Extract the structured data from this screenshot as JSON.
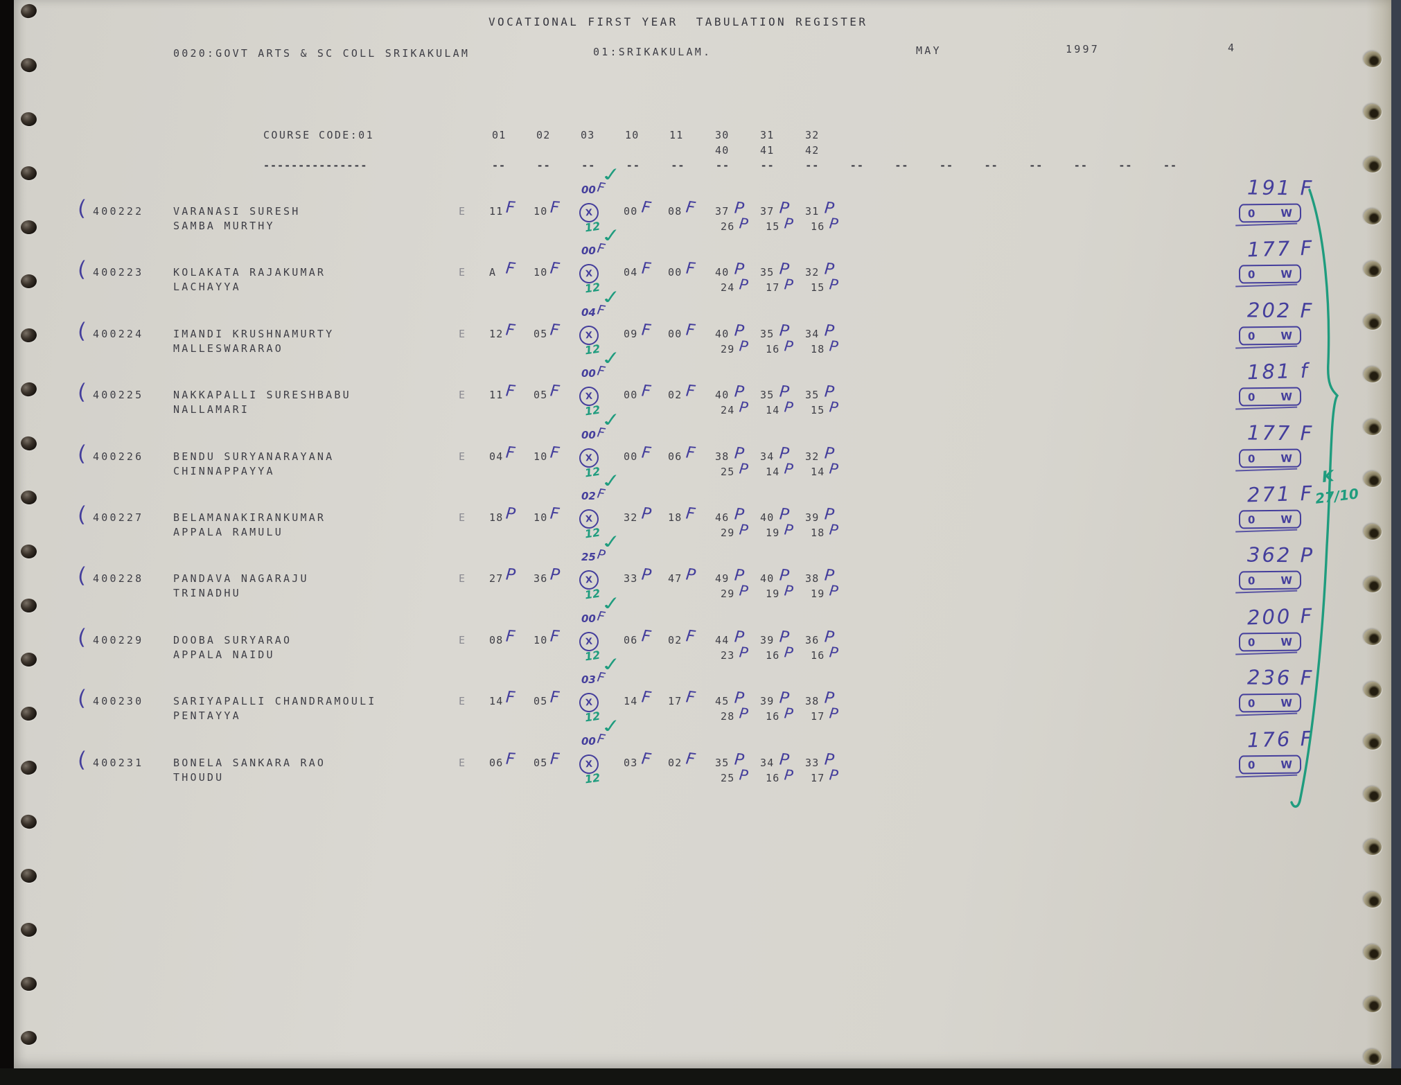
{
  "header": {
    "title": "VOCATIONAL FIRST YEAR  TABULATION REGISTER",
    "college": "0020:GOVT ARTS & SC COLL SRIKAKULAM",
    "district": "01:SRIKAKULAM.",
    "month": "MAY",
    "year": "1997",
    "page_number": "4"
  },
  "table": {
    "course_code_label": "COURSE CODE:01",
    "underline": "---------------",
    "columns_row1": [
      "01",
      "02",
      "03",
      "10",
      "11",
      "30",
      "31",
      "32"
    ],
    "columns_row2": [
      "40",
      "41",
      "42"
    ],
    "dash": "--",
    "dash_groups": 16,
    "medium_label": "E"
  },
  "students": [
    {
      "reg": "400222",
      "name1": "VARANASI SURESH",
      "name2": "SAMBA MURTHY",
      "medium": "E",
      "m": [
        [
          "11",
          "F"
        ],
        [
          "10",
          "F"
        ]
      ],
      "absent": {
        "above": [
          "00",
          "F"
        ],
        "mark": "X",
        "below": "12",
        "check": true
      },
      "m2": [
        [
          "00",
          "F"
        ],
        [
          "08",
          "F"
        ]
      ],
      "r1": [
        [
          "37",
          "P"
        ],
        [
          "37",
          "P"
        ],
        [
          "31",
          "P"
        ]
      ],
      "r2": [
        [
          "26",
          "P"
        ],
        [
          "15",
          "P"
        ],
        [
          "16",
          "P"
        ]
      ],
      "total": "191 F",
      "box": [
        "0",
        "W"
      ]
    },
    {
      "reg": "400223",
      "name1": "KOLAKATA RAJAKUMAR",
      "name2": "LACHAYYA",
      "medium": "E",
      "m": [
        [
          "A",
          "F"
        ],
        [
          "10",
          "F"
        ]
      ],
      "absent": {
        "above": [
          "00",
          "F"
        ],
        "mark": "X",
        "below": "12",
        "check": true
      },
      "m2": [
        [
          "04",
          "F"
        ],
        [
          "00",
          "F"
        ]
      ],
      "r1": [
        [
          "40",
          "P"
        ],
        [
          "35",
          "P"
        ],
        [
          "32",
          "P"
        ]
      ],
      "r2": [
        [
          "24",
          "P"
        ],
        [
          "17",
          "P"
        ],
        [
          "15",
          "P"
        ]
      ],
      "total": "177 F",
      "box": [
        "0",
        "W"
      ]
    },
    {
      "reg": "400224",
      "name1": "IMANDI KRUSHNAMURTY",
      "name2": "MALLESWARARAO",
      "medium": "E",
      "m": [
        [
          "12",
          "F"
        ],
        [
          "05",
          "F"
        ]
      ],
      "absent": {
        "above": [
          "04",
          "F"
        ],
        "mark": "X",
        "below": "12",
        "check": true
      },
      "m2": [
        [
          "09",
          "F"
        ],
        [
          "00",
          "F"
        ]
      ],
      "r1": [
        [
          "40",
          "P"
        ],
        [
          "35",
          "P"
        ],
        [
          "34",
          "P"
        ]
      ],
      "r2": [
        [
          "29",
          "P"
        ],
        [
          "16",
          "P"
        ],
        [
          "18",
          "P"
        ]
      ],
      "total": "202 F",
      "box": [
        "0",
        "W"
      ]
    },
    {
      "reg": "400225",
      "name1": "NAKKAPALLI SURESHBABU",
      "name2": "NALLAMARI",
      "medium": "E",
      "m": [
        [
          "11",
          "F"
        ],
        [
          "05",
          "F"
        ]
      ],
      "absent": {
        "above": [
          "00",
          "F"
        ],
        "mark": "X",
        "below": "12",
        "check": true
      },
      "m2": [
        [
          "00",
          "F"
        ],
        [
          "02",
          "F"
        ]
      ],
      "r1": [
        [
          "40",
          "P"
        ],
        [
          "35",
          "P"
        ],
        [
          "35",
          "P"
        ]
      ],
      "r2": [
        [
          "24",
          "P"
        ],
        [
          "14",
          "P"
        ],
        [
          "15",
          "P"
        ]
      ],
      "total": "181 f",
      "box": [
        "0",
        "W"
      ]
    },
    {
      "reg": "400226",
      "name1": "BENDU SURYANARAYANA",
      "name2": "CHINNAPPAYYA",
      "medium": "E",
      "m": [
        [
          "04",
          "F"
        ],
        [
          "10",
          "F"
        ]
      ],
      "absent": {
        "above": [
          "00",
          "F"
        ],
        "mark": "X",
        "below": "12",
        "check": true
      },
      "m2": [
        [
          "00",
          "F"
        ],
        [
          "06",
          "F"
        ]
      ],
      "r1": [
        [
          "38",
          "P"
        ],
        [
          "34",
          "P"
        ],
        [
          "32",
          "P"
        ]
      ],
      "r2": [
        [
          "25",
          "P"
        ],
        [
          "14",
          "P"
        ],
        [
          "14",
          "P"
        ]
      ],
      "total": "177 F",
      "box": [
        "0",
        "W"
      ]
    },
    {
      "reg": "400227",
      "name1": "BELAMANAKIRANKUMAR",
      "name2": "APPALA RAMULU",
      "medium": "E",
      "m": [
        [
          "18",
          "P"
        ],
        [
          "10",
          "F"
        ]
      ],
      "absent": {
        "above": [
          "02",
          "F"
        ],
        "mark": "X",
        "below": "12",
        "check": true
      },
      "m2": [
        [
          "32",
          "P"
        ],
        [
          "18",
          "F"
        ]
      ],
      "r1": [
        [
          "46",
          "P"
        ],
        [
          "40",
          "P"
        ],
        [
          "39",
          "P"
        ]
      ],
      "r2": [
        [
          "29",
          "P"
        ],
        [
          "19",
          "P"
        ],
        [
          "18",
          "P"
        ]
      ],
      "total": "271 F",
      "box": [
        "0",
        "W"
      ]
    },
    {
      "reg": "400228",
      "name1": "PANDAVA NAGARAJU",
      "name2": "TRINADHU",
      "medium": "E",
      "m": [
        [
          "27",
          "P"
        ],
        [
          "36",
          "P"
        ]
      ],
      "absent": {
        "above": [
          "25",
          "P"
        ],
        "mark": "X",
        "below": "12",
        "check": true
      },
      "m2": [
        [
          "33",
          "P"
        ],
        [
          "47",
          "P"
        ]
      ],
      "r1": [
        [
          "49",
          "P"
        ],
        [
          "40",
          "P"
        ],
        [
          "38",
          "P"
        ]
      ],
      "r2": [
        [
          "29",
          "P"
        ],
        [
          "19",
          "P"
        ],
        [
          "19",
          "P"
        ]
      ],
      "total": "362 P",
      "box": [
        "0",
        "W"
      ]
    },
    {
      "reg": "400229",
      "name1": "DOOBA SURYARAO",
      "name2": "APPALA NAIDU",
      "medium": "E",
      "m": [
        [
          "08",
          "F"
        ],
        [
          "10",
          "F"
        ]
      ],
      "absent": {
        "above": [
          "00",
          "F"
        ],
        "mark": "X",
        "below": "12",
        "check": true
      },
      "m2": [
        [
          "06",
          "F"
        ],
        [
          "02",
          "F"
        ]
      ],
      "r1": [
        [
          "44",
          "P"
        ],
        [
          "39",
          "P"
        ],
        [
          "36",
          "P"
        ]
      ],
      "r2": [
        [
          "23",
          "P"
        ],
        [
          "16",
          "P"
        ],
        [
          "16",
          "P"
        ]
      ],
      "total": "200 F",
      "box": [
        "0",
        "W"
      ]
    },
    {
      "reg": "400230",
      "name1": "SARIYAPALLI CHANDRAMOULI",
      "name2": "PENTAYYA",
      "medium": "E",
      "m": [
        [
          "14",
          "F"
        ],
        [
          "05",
          "F"
        ]
      ],
      "absent": {
        "above": [
          "03",
          "F"
        ],
        "mark": "X",
        "below": "12",
        "check": true
      },
      "m2": [
        [
          "14",
          "F"
        ],
        [
          "17",
          "F"
        ]
      ],
      "r1": [
        [
          "45",
          "P"
        ],
        [
          "39",
          "P"
        ],
        [
          "38",
          "P"
        ]
      ],
      "r2": [
        [
          "28",
          "P"
        ],
        [
          "16",
          "P"
        ],
        [
          "17",
          "P"
        ]
      ],
      "total": "236 F",
      "box": [
        "0",
        "W"
      ]
    },
    {
      "reg": "400231",
      "name1": "BONELA SANKARA RAO",
      "name2": "THOUDU",
      "medium": "E",
      "m": [
        [
          "06",
          "F"
        ],
        [
          "05",
          "F"
        ]
      ],
      "absent": {
        "above": [
          "00",
          "F"
        ],
        "mark": "X",
        "below": "12",
        "check": true
      },
      "m2": [
        [
          "03",
          "F"
        ],
        [
          "02",
          "F"
        ]
      ],
      "r1": [
        [
          "35",
          "P"
        ],
        [
          "34",
          "P"
        ],
        [
          "33",
          "P"
        ]
      ],
      "r2": [
        [
          "25",
          "P"
        ],
        [
          "16",
          "P"
        ],
        [
          "17",
          "P"
        ]
      ],
      "total": "176 F",
      "box": [
        "0",
        "W"
      ]
    }
  ],
  "annotations": {
    "row_bracket": "(",
    "checker_initial": "K",
    "checker_date": "27/10"
  },
  "colors": {
    "ink": "#443e9c",
    "green": "#1f9c7e",
    "print": "#3e3e46",
    "paper": "#d7d5ce"
  }
}
